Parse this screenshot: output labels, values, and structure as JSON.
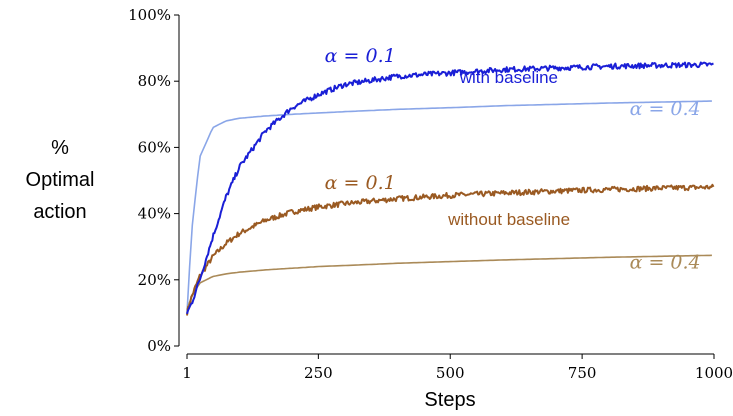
{
  "chart_data": {
    "type": "line",
    "title": "",
    "xlabel": "Steps",
    "ylabel": [
      "%",
      "Optimal",
      "action"
    ],
    "xlim": [
      1,
      1000
    ],
    "ylim": [
      0,
      100
    ],
    "x_ticks": [
      1,
      250,
      500,
      750,
      1000
    ],
    "x_tick_labels": [
      "1",
      "250",
      "500",
      "750",
      "1000"
    ],
    "y_ticks": [
      0,
      20,
      40,
      60,
      80,
      100
    ],
    "y_tick_labels": [
      "0%",
      "20%",
      "40%",
      "60%",
      "80%",
      "100%"
    ],
    "grid": false,
    "x": [
      1,
      10,
      25,
      50,
      75,
      100,
      150,
      200,
      250,
      300,
      400,
      500,
      600,
      700,
      800,
      900,
      1000
    ],
    "series": [
      {
        "group": "with baseline",
        "alpha_label": "α = 0.1",
        "color": "#1a1fd6",
        "noisy": true,
        "values": [
          10,
          13,
          20,
          33,
          45,
          54,
          65,
          72,
          76,
          79,
          81.5,
          82.5,
          83.5,
          84,
          84.5,
          84.8,
          85
        ]
      },
      {
        "group": "with baseline",
        "alpha_label": "α = 0.4",
        "color": "#8aa6e8",
        "noisy": false,
        "values": [
          10,
          35,
          57,
          66,
          68,
          68.8,
          69.5,
          70,
          70.4,
          70.8,
          71.5,
          72,
          72.6,
          73,
          73.4,
          73.7,
          74
        ]
      },
      {
        "group": "without baseline",
        "alpha_label": "α = 0.1",
        "color": "#9a5a22",
        "noisy": true,
        "values": [
          10,
          15,
          21,
          27,
          31,
          34,
          38,
          40.5,
          42,
          43,
          44.5,
          45.5,
          46.2,
          46.8,
          47.3,
          47.7,
          48
        ]
      },
      {
        "group": "without baseline",
        "alpha_label": "α = 0.4",
        "color": "#aa8a58",
        "noisy": false,
        "values": [
          11,
          15,
          19,
          21,
          21.8,
          22.3,
          23,
          23.5,
          24,
          24.3,
          25,
          25.5,
          26,
          26.4,
          26.8,
          27.1,
          27.4
        ]
      }
    ],
    "annotations": [
      {
        "text": "with baseline",
        "color": "#1a1fd6",
        "at": [
          518,
          79.5
        ]
      },
      {
        "text": "without baseline",
        "color": "#9a5a22",
        "at": [
          496,
          36.5
        ]
      }
    ],
    "alpha_labels": [
      {
        "text": "α = 0.1",
        "color": "#1a1fd6",
        "at": [
          262,
          85.8
        ]
      },
      {
        "text": "α = 0.4",
        "color": "#8aa6e8",
        "at": [
          840,
          69.8
        ]
      },
      {
        "text": "α = 0.1",
        "color": "#9a5a22",
        "at": [
          262,
          47.5
        ]
      },
      {
        "text": "α = 0.4",
        "color": "#aa8a58",
        "at": [
          840,
          23.4
        ]
      }
    ]
  }
}
